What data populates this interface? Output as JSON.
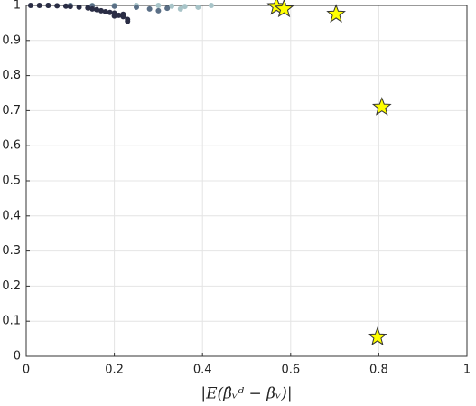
{
  "chart_data": {
    "type": "scatter",
    "xlabel": "|E(β̂ᵥᵈ − βᵥ)|",
    "xlim": [
      0,
      1
    ],
    "ylim": [
      0,
      1
    ],
    "xticks": [
      0,
      0.2,
      0.4,
      0.6,
      0.8,
      1
    ],
    "yticks": [
      0,
      0.1,
      0.2,
      0.3,
      0.4,
      0.5,
      0.6,
      0.7,
      0.8,
      0.9,
      1
    ],
    "grid": true,
    "series": [
      {
        "color": "#a8c4c8",
        "marker": "circle",
        "x": [
          0.1,
          0.15,
          0.2,
          0.25,
          0.3,
          0.33,
          0.36,
          0.39,
          0.42,
          0.35
        ],
        "values": [
          1,
          1,
          1,
          1,
          1,
          0.998,
          0.997,
          0.995,
          1,
          0.99
        ]
      },
      {
        "color": "#5a6f86",
        "marker": "circle",
        "x": [
          0.05,
          0.1,
          0.15,
          0.2,
          0.25,
          0.28,
          0.3,
          0.32
        ],
        "values": [
          1,
          1,
          0.999,
          0.998,
          0.995,
          0.99,
          0.985,
          0.992
        ]
      },
      {
        "color": "#2a2d45",
        "marker": "circle",
        "x": [
          0.01,
          0.03,
          0.05,
          0.07,
          0.09,
          0.1,
          0.12,
          0.14,
          0.15,
          0.16,
          0.17,
          0.18,
          0.19,
          0.2,
          0.21,
          0.22,
          0.23,
          0.23,
          0.22,
          0.2
        ],
        "values": [
          1,
          1,
          1,
          0.999,
          0.998,
          0.997,
          0.995,
          0.993,
          0.99,
          0.988,
          0.985,
          0.982,
          0.98,
          0.978,
          0.972,
          0.968,
          0.96,
          0.955,
          0.975,
          0.97
        ]
      },
      {
        "color": "#ffff00",
        "marker": "star",
        "x": [
          0.568,
          0.585,
          0.703,
          0.807,
          0.797
        ],
        "values": [
          0.997,
          0.99,
          0.975,
          0.71,
          0.055
        ]
      }
    ]
  }
}
